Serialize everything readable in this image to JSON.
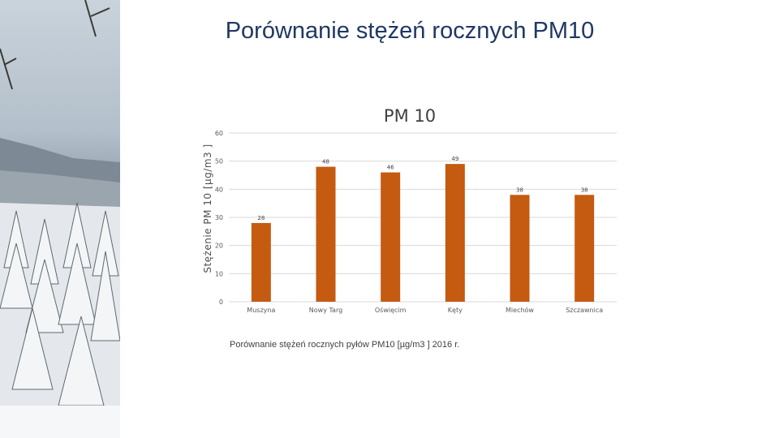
{
  "slide": {
    "title": "Porównanie stężeń rocznych PM10",
    "caption": "Porównanie stężeń rocznych pyłów PM10 [µg/m3 ] 2016 r."
  },
  "colors": {
    "bar": "#c55a11",
    "title": "#1f3864",
    "grid": "#d9d9d9"
  },
  "chart_data": {
    "type": "bar",
    "title": "PM 10",
    "xlabel": "",
    "ylabel": "Stężenie PM 10 [µg/m3 ]",
    "categories": [
      "Muszyna",
      "Nowy Targ",
      "Oświęcim",
      "Kęty",
      "Miechów",
      "Szczawnica"
    ],
    "values": [
      28,
      48,
      46,
      49,
      38,
      38
    ],
    "data_labels": [
      "28",
      "48",
      "46",
      "49",
      "38",
      "38"
    ],
    "ylim": [
      0,
      60
    ],
    "yticks": [
      "0",
      "10",
      "20",
      "30",
      "40",
      "50",
      "60"
    ],
    "grid": true,
    "legend": "none"
  }
}
